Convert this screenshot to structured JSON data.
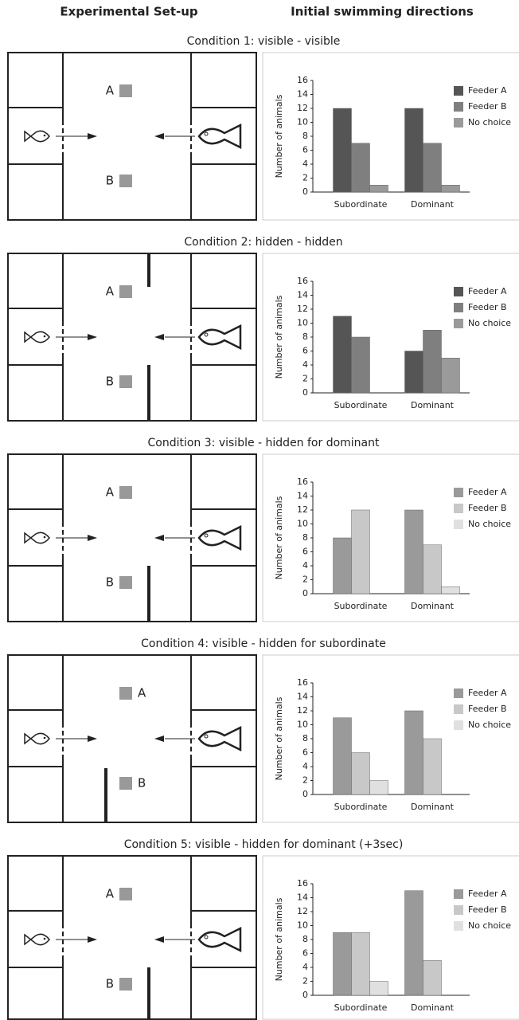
{
  "headers": {
    "left": "Experimental Set-up",
    "right": "Initial swimming directions"
  },
  "diagrams": [
    {
      "a": "A",
      "b": "B"
    },
    {
      "a": "A",
      "b": "B"
    },
    {
      "a": "A",
      "b": "B"
    },
    {
      "a": "A",
      "b": "B"
    },
    {
      "a": "A",
      "b": "B"
    }
  ],
  "chart_data": [
    {
      "type": "bar",
      "title": "Condition 1: visible - visible",
      "y_label": "Number of animals",
      "categories": [
        "Subordinate",
        "Dominant"
      ],
      "series": [
        {
          "name": "Feeder A",
          "color": "#555555",
          "values": [
            12,
            12
          ]
        },
        {
          "name": "Feeder B",
          "color": "#7f7f7f",
          "values": [
            7,
            7
          ]
        },
        {
          "name": "No choice",
          "color": "#9a9a9a",
          "values": [
            1,
            1
          ]
        }
      ],
      "ylim": [
        0,
        16
      ],
      "yticks": [
        0,
        2,
        4,
        6,
        8,
        10,
        12,
        14,
        16
      ],
      "legend": "top-right"
    },
    {
      "type": "bar",
      "title": "Condition 2: hidden - hidden",
      "y_label": "Number of animals",
      "categories": [
        "Subordinate",
        "Dominant"
      ],
      "series": [
        {
          "name": "Feeder A",
          "color": "#555555",
          "values": [
            11,
            6
          ]
        },
        {
          "name": "Feeder B",
          "color": "#7f7f7f",
          "values": [
            8,
            9
          ]
        },
        {
          "name": "No choice",
          "color": "#9a9a9a",
          "values": [
            0,
            5
          ]
        }
      ],
      "ylim": [
        0,
        16
      ],
      "yticks": [
        0,
        2,
        4,
        6,
        8,
        10,
        12,
        14,
        16
      ],
      "legend": "top-right"
    },
    {
      "type": "bar",
      "title": "Condition 3: visible - hidden for dominant",
      "y_label": "Number of animals",
      "categories": [
        "Subordinate",
        "Dominant"
      ],
      "series": [
        {
          "name": "Feeder A",
          "color": "#9a9a9a",
          "values": [
            8,
            12
          ]
        },
        {
          "name": "Feeder B",
          "color": "#c8c8c8",
          "values": [
            12,
            7
          ]
        },
        {
          "name": "No choice",
          "color": "#e0e0e0",
          "values": [
            0,
            1
          ]
        }
      ],
      "ylim": [
        0,
        16
      ],
      "yticks": [
        0,
        2,
        4,
        6,
        8,
        10,
        12,
        14,
        16
      ],
      "legend": "top-right"
    },
    {
      "type": "bar",
      "title": "Condition 4: visible - hidden for subordinate",
      "y_label": "Number of animals",
      "categories": [
        "Subordinate",
        "Dominant"
      ],
      "series": [
        {
          "name": "Feeder A",
          "color": "#9a9a9a",
          "values": [
            11,
            12
          ]
        },
        {
          "name": "Feeder B",
          "color": "#c8c8c8",
          "values": [
            6,
            8
          ]
        },
        {
          "name": "No choice",
          "color": "#e0e0e0",
          "values": [
            2,
            0
          ]
        }
      ],
      "ylim": [
        0,
        16
      ],
      "yticks": [
        0,
        2,
        4,
        6,
        8,
        10,
        12,
        14,
        16
      ],
      "legend": "top-right"
    },
    {
      "type": "bar",
      "title": "Condition 5: visible - hidden for dominant (+3sec)",
      "y_label": "Number of animals",
      "categories": [
        "Subordinate",
        "Dominant"
      ],
      "series": [
        {
          "name": "Feeder A",
          "color": "#9a9a9a",
          "values": [
            9,
            15
          ]
        },
        {
          "name": "Feeder B",
          "color": "#c8c8c8",
          "values": [
            9,
            5
          ]
        },
        {
          "name": "No choice",
          "color": "#e0e0e0",
          "values": [
            2,
            0
          ]
        }
      ],
      "ylim": [
        0,
        16
      ],
      "yticks": [
        0,
        2,
        4,
        6,
        8,
        10,
        12,
        14,
        16
      ],
      "legend": "top-right"
    }
  ]
}
